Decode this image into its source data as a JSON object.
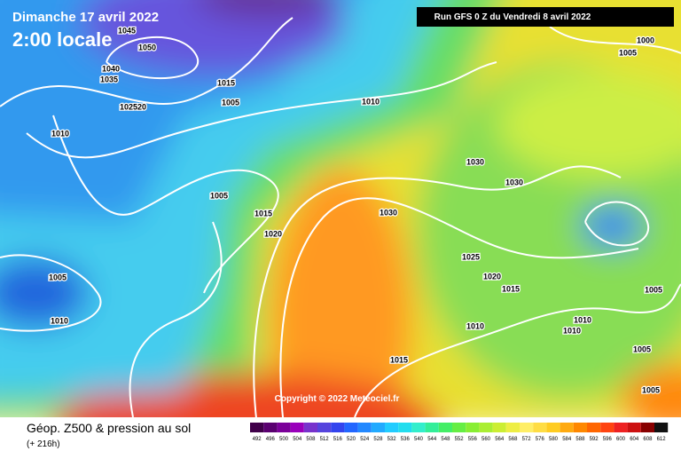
{
  "header": {
    "date": "Dimanche 17 avril 2022",
    "time": "2:00 locale",
    "run": "Run GFS 0 Z du Vendredi 8 avril 2022"
  },
  "footer": {
    "title": "Géop. Z500 & pression au sol",
    "lead": "(+ 216h)",
    "copyright": "Copyright © 2022 Meteociel.fr"
  },
  "legend": {
    "values": [
      492,
      496,
      500,
      504,
      508,
      512,
      516,
      520,
      524,
      528,
      532,
      536,
      540,
      544,
      548,
      552,
      556,
      560,
      564,
      568,
      572,
      576,
      580,
      584,
      588,
      592,
      596,
      600,
      604,
      608,
      612
    ],
    "colors": [
      "#40004a",
      "#5a0070",
      "#7a0099",
      "#9900bb",
      "#7733cc",
      "#5544dd",
      "#3344ee",
      "#2266ff",
      "#2288ff",
      "#22aaff",
      "#22ccff",
      "#22ddee",
      "#33eecc",
      "#33ee99",
      "#44ee66",
      "#66ee44",
      "#88ee33",
      "#aaee33",
      "#ccee33",
      "#eeee44",
      "#ffee66",
      "#ffdd44",
      "#ffcc22",
      "#ffaa11",
      "#ff8800",
      "#ff6600",
      "#ff4411",
      "#ee2222",
      "#cc1111",
      "#880000",
      "#111111"
    ]
  },
  "isobar_labels": [
    "1045",
    "1050",
    "1040",
    "1035",
    "102520",
    "1015",
    "1005",
    "1010",
    "1010",
    "1005",
    "1015",
    "1020",
    "1005",
    "1010",
    "1030",
    "1030",
    "1030",
    "1025",
    "1020",
    "1015",
    "1010",
    "1010",
    "1010",
    "1015",
    "1005",
    "1000",
    "1005",
    "1005",
    "1005"
  ]
}
